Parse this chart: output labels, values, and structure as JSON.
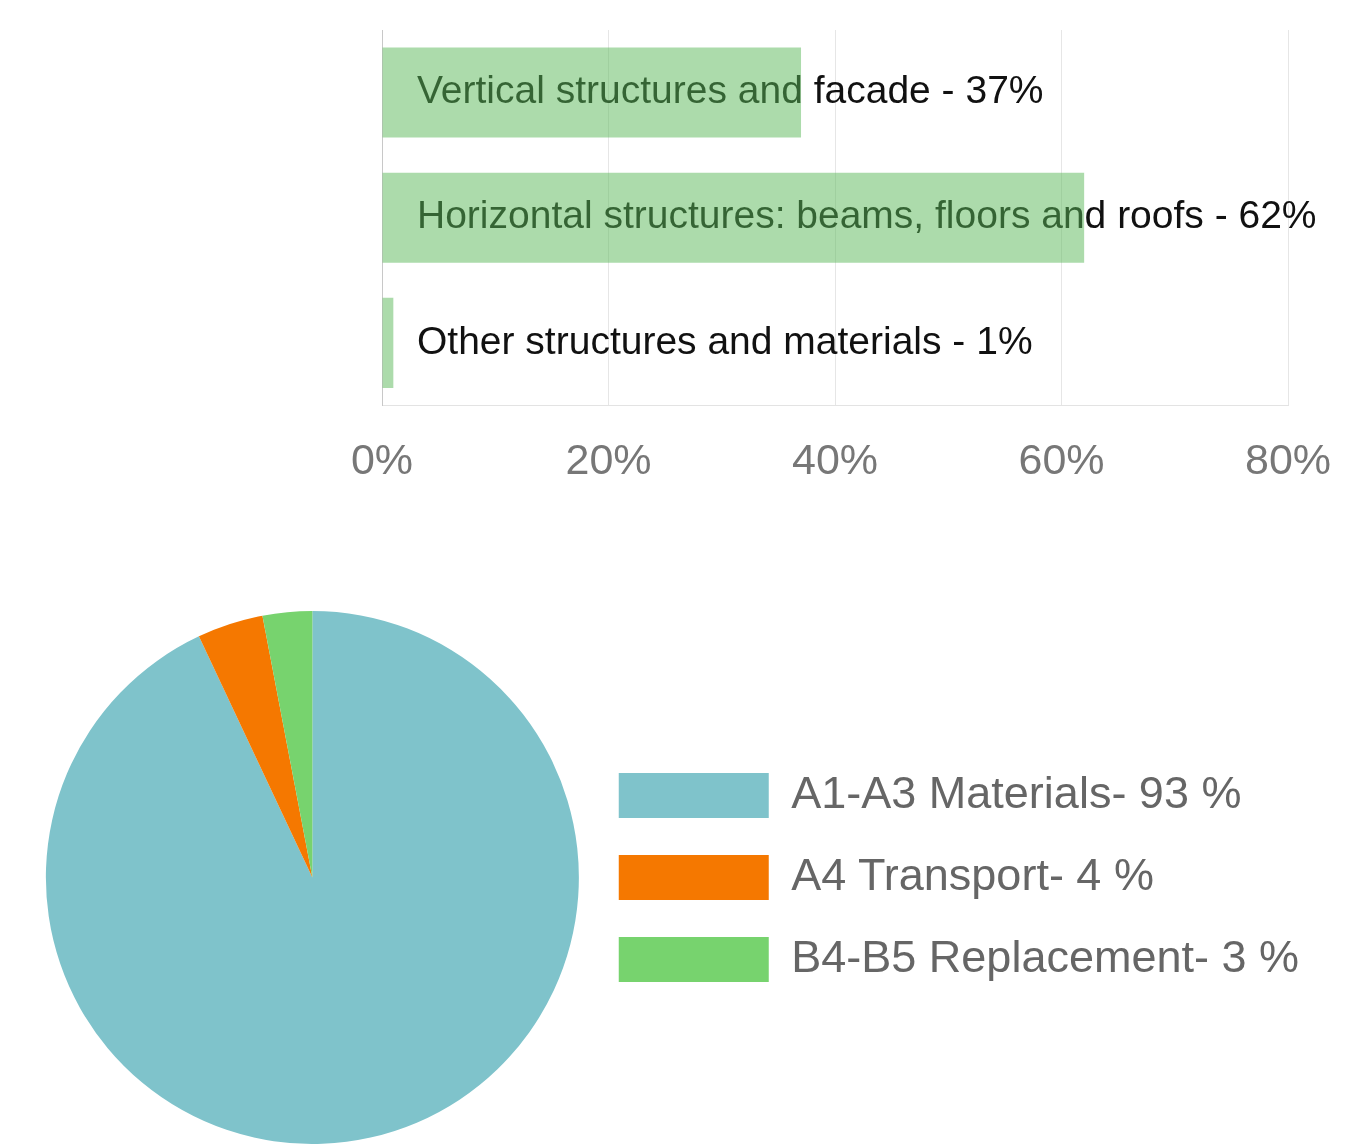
{
  "chart_data": [
    {
      "type": "bar",
      "orientation": "horizontal",
      "categories": [
        "Vertical structures and facade - 37%",
        "Horizontal structures: beams, floors and roofs - 62%",
        "Other structures and materials - 1%"
      ],
      "values": [
        37,
        62,
        1
      ],
      "color": "#acdbab",
      "xlim": [
        0,
        80
      ],
      "xticks": [
        {
          "value": 0,
          "label": "0%"
        },
        {
          "value": 20,
          "label": "20%"
        },
        {
          "value": 40,
          "label": "40%"
        },
        {
          "value": 60,
          "label": "60%"
        },
        {
          "value": 80,
          "label": "80%"
        }
      ],
      "grid": "x"
    },
    {
      "type": "pie",
      "categories": [
        "A1-A3 Materials- 93 %",
        "A4 Transport- 4 %",
        "B4-B5 Replacement- 3 %"
      ],
      "values": [
        93,
        4,
        3
      ],
      "colors": [
        "#7fc3cb",
        "#f57800",
        "#77d36e"
      ],
      "legend": "right"
    }
  ]
}
